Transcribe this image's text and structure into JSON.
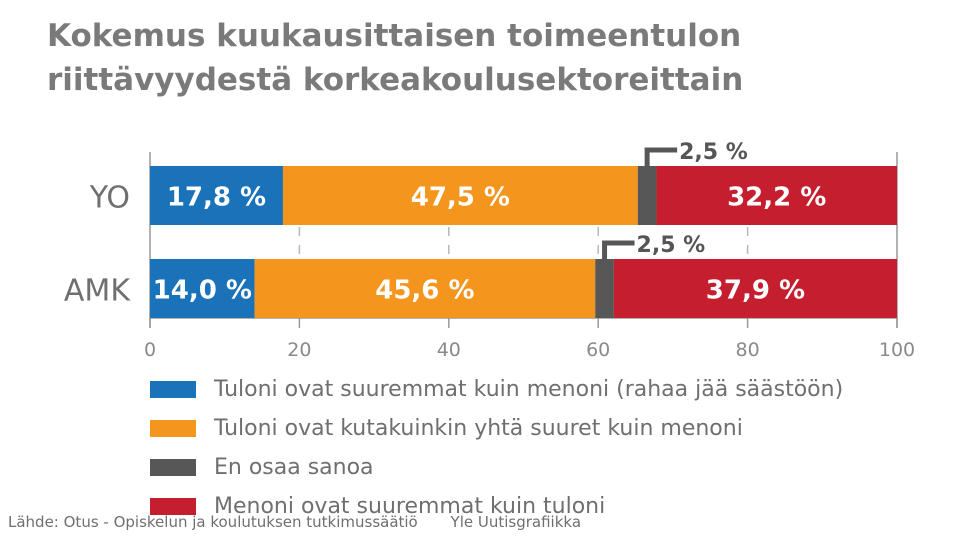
{
  "title": [
    "Kokemus kuukausittaisen toimeentulon",
    "riittävyydestä korkeakoulusektoreittain"
  ],
  "colors": {
    "blue": "#1a73b9",
    "orange": "#f4961e",
    "gray": "#575757",
    "red": "#c41e2f"
  },
  "chart_data": {
    "type": "bar",
    "orientation": "horizontal",
    "stacked": true,
    "title": "Kokemus kuukausittaisen toimeentulon riittävyydestä korkeakoulusektoreittain",
    "categories": [
      "YO",
      "AMK"
    ],
    "xlim": [
      0,
      100
    ],
    "xticks": [
      "0",
      "20",
      "40",
      "60",
      "80",
      "100"
    ],
    "grid": "vertical-dashed",
    "legend_position": "bottom",
    "series": [
      {
        "name": "Tuloni ovat suuremmat kuin menoni (rahaa jää säästöön)",
        "values": [
          17.8,
          14.0
        ],
        "labels": [
          "17,8 %",
          "14,0 %"
        ],
        "color": "#1a73b9"
      },
      {
        "name": "Tuloni ovat kutakuinkin yhtä suuret kuin menoni",
        "values": [
          47.5,
          45.6
        ],
        "labels": [
          "47,5 %",
          "45,6 %"
        ],
        "color": "#f4961e"
      },
      {
        "name": "En osaa sanoa",
        "values": [
          2.5,
          2.5
        ],
        "labels": [
          "2,5 %",
          "2,5 %"
        ],
        "color": "#575757"
      },
      {
        "name": "Menoni ovat suuremmat kuin tuloni",
        "values": [
          32.2,
          37.9
        ],
        "labels": [
          "32,2 %",
          "37,9 %"
        ],
        "color": "#c41e2f"
      }
    ]
  },
  "footer": {
    "source": "Lähde: Otus - Opiskelun ja koulutuksen tutkimussäätiö",
    "credit": "Yle Uutisgrafiikka"
  }
}
